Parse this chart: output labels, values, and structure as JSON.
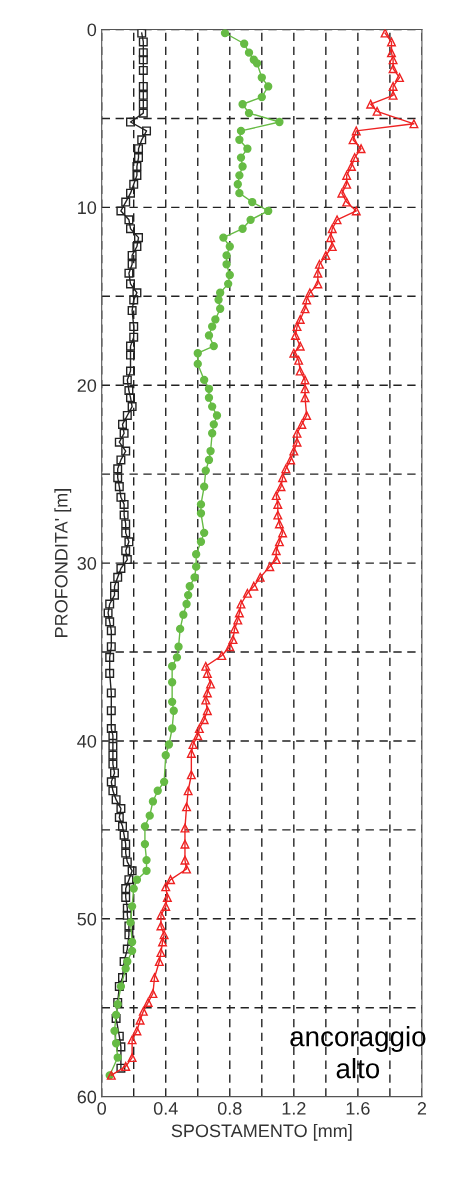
{
  "chart_data": {
    "type": "line",
    "xlabel": "SPOSTAMENTO [mm]",
    "ylabel": "PROFONDITA' [m]",
    "xlim": [
      0,
      2
    ],
    "ylim": [
      60,
      0
    ],
    "xticks": [
      0,
      {
        "value": 0.2,
        "label": null
      },
      0.4,
      {
        "value": 0.6,
        "label": null
      },
      0.8,
      {
        "value": 1.0,
        "label": null
      },
      1.2,
      {
        "value": 1.4,
        "label": null
      },
      1.6,
      {
        "value": 1.8,
        "label": null
      },
      2
    ],
    "yticks": [
      0,
      {
        "value": 5,
        "label": null
      },
      10,
      {
        "value": 15,
        "label": null
      },
      20,
      {
        "value": 25,
        "label": null
      },
      30,
      {
        "value": 35,
        "label": null
      },
      40,
      {
        "value": 45,
        "label": null
      },
      50,
      {
        "value": 55,
        "label": null
      },
      60
    ],
    "grid": true,
    "line_style": "solid",
    "annotations": [
      "ancoraggio\nalto"
    ],
    "series": [
      {
        "color": "#222222",
        "marker": "square",
        "x": [
          0.25,
          0.26,
          0.26,
          0.26,
          0.26,
          0.26,
          0.26,
          0.26,
          0.26,
          0.18,
          0.28,
          0.25,
          0.23,
          0.23,
          0.22,
          0.22,
          0.2,
          0.18,
          0.15,
          0.12,
          0.17,
          0.18,
          0.23,
          0.22,
          0.19,
          0.19,
          0.17,
          0.18,
          0.22,
          0.2,
          0.19,
          0.2,
          0.2,
          0.18,
          0.18,
          0.18,
          0.16,
          0.17,
          0.18,
          0.19,
          0.16,
          0.13,
          0.14,
          0.11,
          0.15,
          0.12,
          0.1,
          0.1,
          0.11,
          0.12,
          0.14,
          0.14,
          0.15,
          0.15,
          0.17,
          0.15,
          0.16,
          0.12,
          0.1,
          0.08,
          0.08,
          0.05,
          0.04,
          0.05,
          0.06,
          0.06,
          0.05,
          0.05,
          0.06,
          0.06,
          0.06,
          0.07,
          0.07,
          0.07,
          0.07,
          0.08,
          0.06,
          0.07,
          0.09,
          0.12,
          0.11,
          0.13,
          0.14,
          0.15,
          0.15,
          0.16,
          0.19,
          0.17,
          0.15,
          0.15,
          0.16,
          0.16,
          0.17,
          0.17,
          0.16,
          0.14,
          0.13,
          0.11,
          0.1,
          0.09,
          0.11,
          0.12,
          0.12
        ],
        "values": [
          0.2,
          0.7,
          1.3,
          1.7,
          2.3,
          3.2,
          3.7,
          4.2,
          4.7,
          5.2,
          5.7,
          6.2,
          6.7,
          7.2,
          7.7,
          8.2,
          8.7,
          9.2,
          9.7,
          10.2,
          10.7,
          11.2,
          11.7,
          12.2,
          12.7,
          13.2,
          13.7,
          14.3,
          14.8,
          15.2,
          15.8,
          16.7,
          17.3,
          17.8,
          18.3,
          19.2,
          19.7,
          20.3,
          20.7,
          21.2,
          21.7,
          22.2,
          22.7,
          23.2,
          23.7,
          24.2,
          24.7,
          25.2,
          25.7,
          26.3,
          26.7,
          27.3,
          27.8,
          28.3,
          28.8,
          29.3,
          29.8,
          30.3,
          30.8,
          31.3,
          31.8,
          32.3,
          32.8,
          33.3,
          33.8,
          34.7,
          35.3,
          36.2,
          37.3,
          38.3,
          39.3,
          39.7,
          40.3,
          40.8,
          41.3,
          41.8,
          42.3,
          42.8,
          43.3,
          43.8,
          44.3,
          44.8,
          45.3,
          45.8,
          46.3,
          46.8,
          47.3,
          47.8,
          48.3,
          48.8,
          49.4,
          49.8,
          50.4,
          50.9,
          51.7,
          52.4,
          53.3,
          53.8,
          54.7,
          55.6,
          56.6,
          57.2,
          58.4
        ]
      },
      {
        "color": "#66bb44",
        "marker": "circle",
        "x": [
          0.77,
          0.89,
          0.92,
          0.95,
          0.97,
          1.0,
          1.04,
          1.0,
          0.88,
          0.92,
          1.11,
          0.87,
          0.86,
          0.91,
          0.87,
          0.88,
          0.86,
          0.85,
          0.86,
          0.94,
          1.04,
          0.93,
          0.88,
          0.76,
          0.8,
          0.78,
          0.78,
          0.8,
          0.79,
          0.74,
          0.73,
          0.74,
          0.71,
          0.69,
          0.67,
          0.7,
          0.6,
          0.6,
          0.64,
          0.67,
          0.67,
          0.69,
          0.72,
          0.7,
          0.69,
          0.68,
          0.67,
          0.65,
          0.64,
          0.62,
          0.62,
          0.64,
          0.62,
          0.59,
          0.59,
          0.58,
          0.55,
          0.54,
          0.53,
          0.51,
          0.49,
          0.48,
          0.47,
          0.44,
          0.44,
          0.44,
          0.45,
          0.44,
          0.42,
          0.4,
          0.39,
          0.35,
          0.32,
          0.3,
          0.27,
          0.27,
          0.28,
          0.28,
          0.22,
          0.2,
          0.19,
          0.18,
          0.19,
          0.19,
          0.16,
          0.15,
          0.12,
          0.1,
          0.09,
          0.08,
          0.09,
          0.1,
          0.05
        ],
        "values": [
          0.2,
          0.8,
          1.3,
          1.7,
          1.9,
          2.7,
          3.2,
          3.8,
          4.2,
          4.7,
          5.2,
          5.7,
          6.2,
          6.7,
          7.2,
          7.7,
          8.2,
          8.7,
          9.2,
          9.7,
          10.2,
          10.7,
          11.2,
          11.7,
          12.2,
          12.7,
          13.2,
          13.8,
          14.3,
          14.8,
          15.2,
          15.7,
          16.3,
          16.7,
          17.2,
          17.8,
          18.2,
          18.8,
          19.7,
          20.2,
          20.7,
          21.2,
          21.7,
          22.2,
          22.7,
          23.7,
          24.2,
          24.8,
          25.7,
          26.7,
          27.2,
          28.3,
          28.8,
          29.5,
          30.2,
          30.8,
          31.3,
          31.8,
          32.3,
          32.9,
          33.7,
          34.7,
          35.3,
          35.8,
          36.7,
          37.8,
          38.3,
          39.3,
          40.2,
          40.8,
          42.3,
          42.8,
          43.4,
          44.2,
          44.8,
          45.8,
          46.7,
          47.3,
          47.8,
          48.3,
          49.3,
          50.2,
          51.3,
          51.8,
          52.4,
          52.8,
          53.8,
          54.8,
          55.4,
          56.3,
          57.0,
          57.8,
          58.8
        ]
      },
      {
        "color": "#ee2222",
        "marker": "triangle",
        "x": [
          1.77,
          1.81,
          1.81,
          1.82,
          1.82,
          1.86,
          1.82,
          1.82,
          1.68,
          1.72,
          1.95,
          1.59,
          1.57,
          1.62,
          1.58,
          1.56,
          1.53,
          1.53,
          1.5,
          1.53,
          1.59,
          1.47,
          1.44,
          1.43,
          1.44,
          1.4,
          1.36,
          1.35,
          1.35,
          1.3,
          1.28,
          1.27,
          1.24,
          1.22,
          1.21,
          1.24,
          1.2,
          1.23,
          1.24,
          1.27,
          1.27,
          1.27,
          1.28,
          1.25,
          1.22,
          1.22,
          1.2,
          1.18,
          1.15,
          1.13,
          1.12,
          1.09,
          1.1,
          1.1,
          1.11,
          1.13,
          1.11,
          1.09,
          1.09,
          1.05,
          0.99,
          0.95,
          0.91,
          0.87,
          0.86,
          0.85,
          0.83,
          0.82,
          0.8,
          0.75,
          0.65,
          0.66,
          0.68,
          0.66,
          0.65,
          0.66,
          0.64,
          0.61,
          0.6,
          0.57,
          0.56,
          0.56,
          0.54,
          0.53,
          0.52,
          0.52,
          0.52,
          0.53,
          0.43,
          0.4,
          0.41,
          0.4,
          0.37,
          0.37,
          0.39,
          0.38,
          0.37,
          0.36,
          0.33,
          0.32,
          0.29,
          0.26,
          0.24,
          0.22,
          0.19,
          0.19,
          0.15,
          0.06
        ],
        "values": [
          0.2,
          0.7,
          1.3,
          1.7,
          2.2,
          2.7,
          3.2,
          3.7,
          4.2,
          4.6,
          5.3,
          5.7,
          6.2,
          6.7,
          7.2,
          7.7,
          8.2,
          8.7,
          9.2,
          9.7,
          10.2,
          10.7,
          11.2,
          11.7,
          12.2,
          12.7,
          13.2,
          13.7,
          14.3,
          14.8,
          15.2,
          15.7,
          16.3,
          16.7,
          17.2,
          17.8,
          18.2,
          18.6,
          19.2,
          19.7,
          20.2,
          20.7,
          21.7,
          22.2,
          22.7,
          23.2,
          23.7,
          24.2,
          24.7,
          25.2,
          25.7,
          26.2,
          26.7,
          27.3,
          27.8,
          28.3,
          28.8,
          29.3,
          29.8,
          30.2,
          30.8,
          31.3,
          31.7,
          32.3,
          32.8,
          33.2,
          33.7,
          34.3,
          34.7,
          35.2,
          35.8,
          36.2,
          36.8,
          37.3,
          37.7,
          38.3,
          38.8,
          39.3,
          39.7,
          40.2,
          40.7,
          41.9,
          42.8,
          43.7,
          44.9,
          45.8,
          46.7,
          47.2,
          47.8,
          48.2,
          48.8,
          49.3,
          49.8,
          50.4,
          50.9,
          51.3,
          51.9,
          52.4,
          53.3,
          54.2,
          54.7,
          55.2,
          55.7,
          56.3,
          56.8,
          57.8,
          58.3,
          58.8
        ]
      }
    ]
  }
}
